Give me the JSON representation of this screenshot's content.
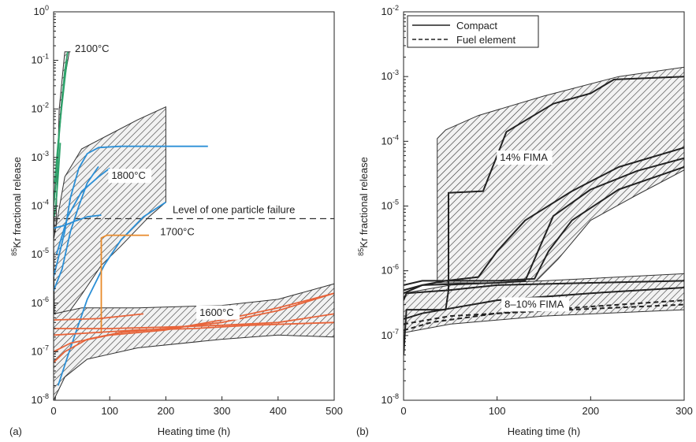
{
  "chart_data": [
    {
      "type": "line",
      "panel_label": "(a)",
      "xlabel": "Heating time (h)",
      "ylabel_sup": "85",
      "ylabel": "Kr fractional release",
      "yscale": "log",
      "xlim": [
        0,
        500
      ],
      "ylim_exp": [
        -8,
        0
      ],
      "xticks": [
        0,
        100,
        200,
        300,
        400,
        500
      ],
      "ytick_exps": [
        -8,
        -7,
        -6,
        -5,
        -4,
        -3,
        -2,
        -1,
        0
      ],
      "grid": false,
      "reference_line": {
        "label": "Level of one particle failure",
        "y": 5.5e-05
      },
      "annotations": [
        {
          "text": "2100°C",
          "x": 38,
          "y": 0.15
        },
        {
          "text": "1800°C",
          "x": 103,
          "y": 0.00036
        },
        {
          "text": "1700°C",
          "x": 190,
          "y": 2.5e-05
        },
        {
          "text": "1600°C",
          "x": 260,
          "y": 5.5e-07
        }
      ],
      "bands": [
        {
          "name": "2100",
          "upper": [
            [
              3,
              1e-05
            ],
            [
              10,
              0.01
            ],
            [
              20,
              0.15
            ],
            [
              30,
              0.15
            ]
          ],
          "lower": [
            [
              28,
              0.15
            ],
            [
              15,
              0.02
            ],
            [
              5,
              0.0008
            ],
            [
              0,
              0.0001
            ]
          ]
        },
        {
          "name": "1800",
          "upper": [
            [
              0,
              2e-05
            ],
            [
              20,
              0.0004
            ],
            [
              50,
              0.0015
            ],
            [
              100,
              0.003
            ],
            [
              150,
              0.006
            ],
            [
              200,
              0.011
            ]
          ],
          "lower": [
            [
              200,
              0.00012
            ],
            [
              170,
              6e-05
            ],
            [
              120,
              1.5e-05
            ],
            [
              85,
              6e-06
            ],
            [
              50,
              1.5e-06
            ],
            [
              20,
              5e-07
            ],
            [
              5,
              2e-08
            ],
            [
              3,
              1e-08
            ]
          ]
        },
        {
          "name": "1600",
          "upper": [
            [
              0,
              6e-07
            ],
            [
              50,
              8e-07
            ],
            [
              150,
              8e-07
            ],
            [
              300,
              9e-07
            ],
            [
              400,
              1.2e-06
            ],
            [
              500,
              2.5e-06
            ]
          ],
          "lower": [
            [
              500,
              2e-07
            ],
            [
              400,
              2.2e-07
            ],
            [
              300,
              1.8e-07
            ],
            [
              150,
              1.2e-07
            ],
            [
              60,
              7e-08
            ],
            [
              20,
              3e-08
            ],
            [
              0,
              1e-08
            ]
          ]
        }
      ],
      "series": [
        {
          "color": "#2ea36b",
          "points": [
            [
              0,
              0.0001
            ],
            [
              6,
              0.0005
            ],
            [
              10,
              0.003
            ],
            [
              15,
              0.015
            ],
            [
              20,
              0.06
            ],
            [
              25,
              0.15
            ]
          ]
        },
        {
          "color": "#2ea36b",
          "points": [
            [
              2,
              0.0003
            ],
            [
              8,
              0.002
            ],
            [
              14,
              0.01
            ],
            [
              20,
              0.04
            ],
            [
              24,
              0.1
            ]
          ]
        },
        {
          "color": "#2ea36b",
          "points": [
            [
              1,
              6e-05
            ],
            [
              4,
              0.0001
            ],
            [
              8,
              0.0004
            ],
            [
              12,
              0.002
            ]
          ]
        },
        {
          "color": "#2b8fd6",
          "points": [
            [
              0,
              3.5e-05
            ],
            [
              20,
              4e-05
            ],
            [
              40,
              5e-05
            ],
            [
              60,
              6e-05
            ],
            [
              85,
              6.5e-05
            ]
          ]
        },
        {
          "color": "#2b8fd6",
          "points": [
            [
              0,
              3.5e-06
            ],
            [
              10,
              1e-05
            ],
            [
              20,
              3e-05
            ],
            [
              30,
              0.00015
            ],
            [
              45,
              0.0006
            ],
            [
              60,
              0.0012
            ],
            [
              80,
              0.0016
            ],
            [
              120,
              0.0017
            ],
            [
              200,
              0.0017
            ],
            [
              275,
              0.0017
            ]
          ]
        },
        {
          "color": "#2b8fd6",
          "points": [
            [
              0,
              1.8e-06
            ],
            [
              15,
              5e-06
            ],
            [
              30,
              3e-05
            ],
            [
              45,
              0.0001
            ],
            [
              60,
              0.0003
            ],
            [
              80,
              0.00065
            ]
          ]
        },
        {
          "color": "#2b8fd6",
          "points": [
            [
              5,
              1e-05
            ],
            [
              25,
              6e-05
            ],
            [
              50,
              0.0002
            ],
            [
              80,
              0.0004
            ],
            [
              100,
              0.0006
            ]
          ]
        },
        {
          "color": "#2b8fd6",
          "points": [
            [
              8,
              2e-08
            ],
            [
              30,
              1.2e-07
            ],
            [
              60,
              1.2e-06
            ],
            [
              90,
              6e-06
            ],
            [
              120,
              2e-05
            ],
            [
              160,
              6e-05
            ],
            [
              200,
              0.00012
            ]
          ]
        },
        {
          "color": "#e88a2a",
          "points": [
            [
              80,
              2.5e-07
            ],
            [
              85,
              2.5e-07
            ],
            [
              85,
              2.2e-05
            ],
            [
              95,
              2.5e-05
            ],
            [
              170,
              2.5e-05
            ]
          ]
        },
        {
          "color": "#e8643a",
          "points": [
            [
              0,
              4.5e-07
            ],
            [
              80,
              4.8e-07
            ],
            [
              160,
              6e-07
            ]
          ]
        },
        {
          "color": "#e8643a",
          "points": [
            [
              0,
              3e-07
            ],
            [
              100,
              3e-07
            ],
            [
              200,
              3.2e-07
            ],
            [
              300,
              3.5e-07
            ],
            [
              400,
              4e-07
            ],
            [
              500,
              6e-07
            ]
          ]
        },
        {
          "color": "#e8643a",
          "points": [
            [
              0,
              2.2e-07
            ],
            [
              80,
              2.5e-07
            ],
            [
              150,
              2.8e-07
            ],
            [
              250,
              3e-07
            ],
            [
              350,
              3.5e-07
            ],
            [
              500,
              4e-07
            ]
          ]
        },
        {
          "color": "#e8643a",
          "points": [
            [
              0,
              6e-08
            ],
            [
              20,
              1e-07
            ],
            [
              60,
              1.8e-07
            ],
            [
              120,
              2.5e-07
            ],
            [
              200,
              3e-07
            ],
            [
              300,
              4e-07
            ],
            [
              400,
              7e-07
            ],
            [
              500,
              1.6e-06
            ]
          ]
        },
        {
          "color": "#e8643a",
          "points": [
            [
              0,
              1e-07
            ],
            [
              30,
              1.5e-07
            ],
            [
              100,
              2.2e-07
            ],
            [
              200,
              2.8e-07
            ],
            [
              300,
              4.5e-07
            ],
            [
              400,
              8e-07
            ],
            [
              500,
              1.6e-06
            ]
          ]
        }
      ]
    },
    {
      "type": "line",
      "panel_label": "(b)",
      "xlabel": "Heating time (h)",
      "ylabel_sup": "85",
      "ylabel": "Kr fractional release",
      "yscale": "log",
      "xlim": [
        0,
        300
      ],
      "ylim_exp": [
        -8,
        -2
      ],
      "xticks": [
        0,
        100,
        200,
        300
      ],
      "ytick_exps": [
        -8,
        -7,
        -6,
        -5,
        -4,
        -3,
        -2
      ],
      "grid": false,
      "legend": {
        "position": "top-left",
        "entries": [
          {
            "label": "Compact",
            "style": "solid"
          },
          {
            "label": "Fuel element",
            "style": "dashed"
          }
        ]
      },
      "annotations": [
        {
          "text": "14% FIMA",
          "x": 103,
          "y": 5e-05
        },
        {
          "text": "8–10% FIMA",
          "x": 108,
          "y": 2.7e-07
        }
      ],
      "bands": [
        {
          "name": "14% FIMA",
          "upper": [
            [
              36,
              0.00011
            ],
            [
              45,
              0.00015
            ],
            [
              80,
              0.00025
            ],
            [
              150,
              0.0005
            ],
            [
              230,
              0.001
            ],
            [
              300,
              0.0014
            ]
          ],
          "lower": [
            [
              300,
              3.6e-05
            ],
            [
              250,
              1.5e-05
            ],
            [
              200,
              6e-06
            ],
            [
              165,
              1.5e-06
            ],
            [
              140,
              6.5e-07
            ],
            [
              36,
              6.5e-07
            ]
          ]
        },
        {
          "name": "8–10% FIMA",
          "upper": [
            [
              0,
              4.5e-07
            ],
            [
              50,
              6e-07
            ],
            [
              150,
              7e-07
            ],
            [
              300,
              9e-07
            ]
          ],
          "lower": [
            [
              300,
              2.5e-07
            ],
            [
              150,
              2e-07
            ],
            [
              50,
              1.5e-07
            ],
            [
              0,
              1.1e-07
            ]
          ]
        }
      ],
      "series": [
        {
          "style": "solid",
          "points": [
            [
              0,
              3.5e-07
            ],
            [
              3,
              4.5e-07
            ],
            [
              30,
              4.8e-07
            ],
            [
              48,
              5e-07
            ],
            [
              48,
              1.6e-05
            ],
            [
              85,
              1.7e-05
            ],
            [
              110,
              0.00014
            ],
            [
              160,
              0.00038
            ],
            [
              200,
              0.00055
            ],
            [
              225,
              0.0009
            ],
            [
              300,
              0.001
            ]
          ]
        },
        {
          "style": "solid",
          "points": [
            [
              0,
              4.5e-07
            ],
            [
              20,
              6e-07
            ],
            [
              45,
              7e-07
            ],
            [
              80,
              8e-07
            ],
            [
              100,
              2e-06
            ],
            [
              130,
              6e-06
            ],
            [
              180,
              1.7e-05
            ],
            [
              230,
              4e-05
            ],
            [
              300,
              8e-05
            ]
          ]
        },
        {
          "style": "solid",
          "points": [
            [
              0,
              5e-07
            ],
            [
              20,
              6e-07
            ],
            [
              100,
              6.5e-07
            ],
            [
              130,
              7e-07
            ],
            [
              140,
              1.5e-06
            ],
            [
              160,
              7e-06
            ],
            [
              200,
              1.8e-05
            ],
            [
              250,
              3.5e-05
            ],
            [
              300,
              5.5e-05
            ]
          ]
        },
        {
          "style": "solid",
          "points": [
            [
              0,
              6e-07
            ],
            [
              20,
              7e-07
            ],
            [
              100,
              7e-07
            ],
            [
              140,
              7.5e-07
            ],
            [
              155,
              2e-06
            ],
            [
              180,
              6e-06
            ],
            [
              230,
              1.8e-05
            ],
            [
              300,
              4e-05
            ]
          ]
        },
        {
          "style": "solid",
          "points": [
            [
              0,
              5e-08
            ],
            [
              3,
              2.5e-07
            ],
            [
              15,
              2.5e-07
            ],
            [
              35,
              2.5e-07
            ],
            [
              45,
              2.5e-07
            ],
            [
              48,
              5e-07
            ],
            [
              100,
              6e-07
            ],
            [
              200,
              6.5e-07
            ],
            [
              300,
              7e-07
            ]
          ]
        },
        {
          "style": "solid",
          "points": [
            [
              0,
              1.8e-07
            ],
            [
              20,
              2.2e-07
            ],
            [
              100,
              3.5e-07
            ],
            [
              200,
              4.5e-07
            ],
            [
              300,
              5.5e-07
            ]
          ]
        },
        {
          "style": "dashed",
          "points": [
            [
              0,
              1.2e-07
            ],
            [
              30,
              1.6e-07
            ],
            [
              100,
              2.2e-07
            ],
            [
              200,
              2.8e-07
            ],
            [
              300,
              3.5e-07
            ]
          ]
        },
        {
          "style": "dashed",
          "points": [
            [
              0,
              1.5e-07
            ],
            [
              50,
              2e-07
            ],
            [
              150,
              2.4e-07
            ],
            [
              300,
              3e-07
            ]
          ]
        }
      ]
    }
  ]
}
